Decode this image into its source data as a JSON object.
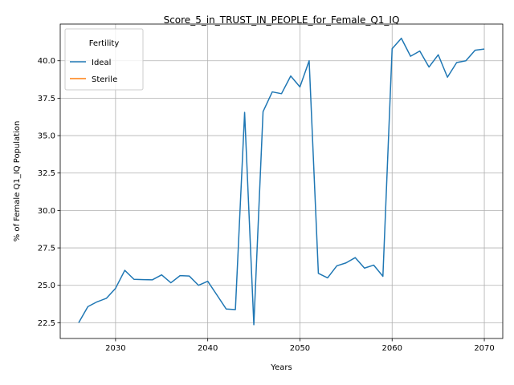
{
  "chart_data": {
    "type": "line",
    "title": "Score_5_in_TRUST_IN_PEOPLE_for_Female_Q1_IQ",
    "xlabel": "Years",
    "ylabel": "% of Female Q1_IQ Population",
    "xlim": [
      2024,
      2072
    ],
    "ylim": [
      21.45,
      42.45
    ],
    "xticks": [
      2030,
      2040,
      2050,
      2060,
      2070
    ],
    "xtick_labels": [
      "2030",
      "2040",
      "2050",
      "2060",
      "2070"
    ],
    "yticks": [
      22.5,
      25.0,
      27.5,
      30.0,
      32.5,
      35.0,
      37.5,
      40.0
    ],
    "ytick_labels": [
      "22.5",
      "25.0",
      "27.5",
      "30.0",
      "32.5",
      "35.0",
      "37.5",
      "40.0"
    ],
    "grid": true,
    "legend": {
      "title": "Fertility",
      "position": "top-left",
      "entries": [
        "Ideal",
        "Sterile"
      ]
    },
    "series": [
      {
        "name": "Ideal",
        "color": "#1f77b4",
        "x": [
          2026,
          2027,
          2028,
          2029,
          2030,
          2031,
          2032,
          2033,
          2034,
          2035,
          2036,
          2037,
          2038,
          2039,
          2040,
          2041,
          2042,
          2043,
          2044,
          2045,
          2046,
          2047,
          2048,
          2049,
          2050,
          2051,
          2052,
          2053,
          2054,
          2055,
          2056,
          2057,
          2058,
          2059,
          2060,
          2061,
          2062,
          2063,
          2064,
          2065,
          2066,
          2067,
          2068,
          2069,
          2070
        ],
        "values": [
          22.5,
          23.58,
          23.9,
          24.13,
          24.8,
          26.0,
          25.4,
          25.38,
          25.37,
          25.7,
          25.17,
          25.65,
          25.62,
          25.0,
          25.27,
          24.35,
          23.42,
          23.38,
          36.55,
          22.37,
          36.6,
          37.92,
          37.8,
          38.98,
          38.25,
          40.0,
          25.8,
          25.5,
          26.3,
          26.5,
          26.85,
          26.15,
          26.35,
          25.6,
          40.8,
          41.5,
          40.3,
          40.65,
          39.58,
          40.4,
          38.9,
          39.88,
          40.0,
          40.7,
          40.78
        ]
      },
      {
        "name": "Sterile",
        "color": "#ff7f0e",
        "x": [],
        "values": []
      }
    ]
  }
}
